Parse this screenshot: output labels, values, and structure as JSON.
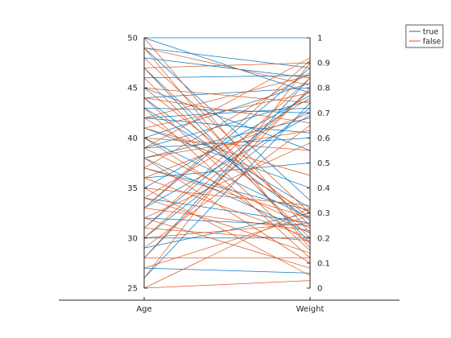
{
  "chart_data": {
    "type": "line",
    "subtype": "parallel-coordinates",
    "categories": [
      "Age",
      "Weight"
    ],
    "axes": [
      {
        "name": "Age",
        "ylim": [
          25,
          50
        ],
        "ticks": [
          25,
          30,
          35,
          40,
          45,
          50
        ],
        "tick_labels": [
          "25",
          "30",
          "35",
          "40",
          "45",
          "50"
        ],
        "tick_side": "left"
      },
      {
        "name": "Weight",
        "ylim": [
          0,
          1
        ],
        "ticks": [
          0,
          0.1,
          0.2,
          0.3,
          0.4,
          0.5,
          0.6,
          0.7,
          0.8,
          0.9,
          1
        ],
        "tick_labels": [
          "0",
          "0.1",
          "0.2",
          "0.3",
          "0.4",
          "0.5",
          "0.6",
          "0.7",
          "0.8",
          "0.9",
          "1"
        ],
        "tick_side": "right"
      }
    ],
    "legend": {
      "placement": "top-right",
      "entries": [
        {
          "name": "true",
          "color": "#0072BD"
        },
        {
          "name": "false",
          "color": "#D95319"
        }
      ]
    },
    "grid": false,
    "series": [
      {
        "name": "true",
        "color": "#0072BD",
        "lines": [
          [
            50,
            1.0
          ],
          [
            50,
            0.78
          ],
          [
            49,
            0.88
          ],
          [
            49,
            0.35
          ],
          [
            48,
            0.84
          ],
          [
            47,
            0.18
          ],
          [
            46,
            0.85
          ],
          [
            45,
            0.55
          ],
          [
            44,
            0.8
          ],
          [
            44,
            0.27
          ],
          [
            43,
            0.7
          ],
          [
            43,
            0.32
          ],
          [
            42,
            0.72
          ],
          [
            42,
            0.62
          ],
          [
            41,
            0.4
          ],
          [
            40,
            0.82
          ],
          [
            40,
            0.28
          ],
          [
            39,
            0.6
          ],
          [
            39,
            0.75
          ],
          [
            38,
            0.22
          ],
          [
            38,
            0.68
          ],
          [
            37,
            0.31
          ],
          [
            36,
            0.5
          ],
          [
            35,
            0.77
          ],
          [
            34,
            0.26
          ],
          [
            33,
            0.69
          ],
          [
            33,
            0.88
          ],
          [
            32,
            0.25
          ],
          [
            31,
            0.79
          ],
          [
            30,
            0.72
          ],
          [
            30,
            0.2
          ],
          [
            29,
            0.3
          ],
          [
            28,
            0.84
          ],
          [
            27,
            0.06
          ],
          [
            26,
            0.74
          ]
        ]
      },
      {
        "name": "false",
        "color": "#D95319",
        "lines": [
          [
            50,
            0.22
          ],
          [
            49,
            0.81
          ],
          [
            49,
            0.16
          ],
          [
            48,
            0.3
          ],
          [
            47,
            0.9
          ],
          [
            47,
            0.25
          ],
          [
            46,
            0.2
          ],
          [
            45,
            0.74
          ],
          [
            45,
            0.28
          ],
          [
            44,
            0.66
          ],
          [
            44,
            0.15
          ],
          [
            43,
            0.12
          ],
          [
            42,
            0.85
          ],
          [
            42,
            0.3
          ],
          [
            41,
            0.78
          ],
          [
            41,
            0.45
          ],
          [
            40,
            0.55
          ],
          [
            40,
            0.18
          ],
          [
            39,
            0.92
          ],
          [
            39,
            0.24
          ],
          [
            38,
            0.63
          ],
          [
            38,
            0.1
          ],
          [
            37,
            0.86
          ],
          [
            37,
            0.28
          ],
          [
            36,
            0.7
          ],
          [
            36,
            0.2
          ],
          [
            35,
            0.33
          ],
          [
            35,
            0.05
          ],
          [
            34,
            0.76
          ],
          [
            34,
            0.14
          ],
          [
            33,
            0.91
          ],
          [
            33,
            0.23
          ],
          [
            32,
            0.58
          ],
          [
            32,
            0.08
          ],
          [
            31,
            0.84
          ],
          [
            31,
            0.19
          ],
          [
            30,
            0.79
          ],
          [
            30,
            0.26
          ],
          [
            29,
            0.65
          ],
          [
            28,
            0.12
          ],
          [
            28,
            0.8
          ],
          [
            27,
            0.29
          ],
          [
            26,
            0.9
          ],
          [
            25,
            0.03
          ],
          [
            25,
            0.32
          ]
        ]
      }
    ]
  }
}
